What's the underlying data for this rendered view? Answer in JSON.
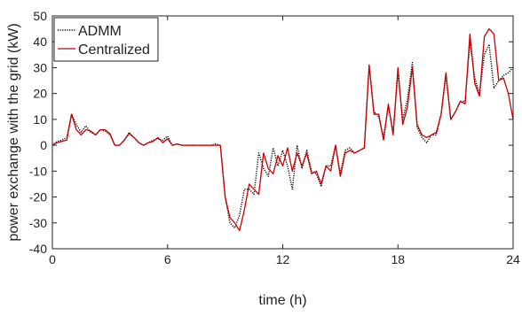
{
  "chart_data": {
    "type": "line",
    "xlabel": "time (h)",
    "ylabel": "power exchange with the grid (kW)",
    "xlim": [
      0,
      24
    ],
    "ylim": [
      -40,
      50
    ],
    "xticks": [
      0,
      6,
      12,
      18,
      24
    ],
    "yticks": [
      -40,
      -30,
      -20,
      -10,
      0,
      10,
      20,
      30,
      40,
      50
    ],
    "grid": false,
    "box": true,
    "legend_position": "top-left",
    "x": [
      0,
      0.25,
      0.5,
      0.75,
      1,
      1.25,
      1.5,
      1.75,
      2,
      2.25,
      2.5,
      2.75,
      3,
      3.25,
      3.5,
      3.75,
      4,
      4.25,
      4.5,
      4.75,
      5,
      5.25,
      5.5,
      5.75,
      6,
      6.25,
      6.5,
      6.75,
      7,
      7.25,
      7.5,
      7.75,
      8,
      8.25,
      8.5,
      8.75,
      9,
      9.25,
      9.5,
      9.75,
      10,
      10.25,
      10.5,
      10.75,
      11,
      11.25,
      11.5,
      11.75,
      12,
      12.25,
      12.5,
      12.75,
      13,
      13.25,
      13.5,
      13.75,
      14,
      14.25,
      14.5,
      14.75,
      15,
      15.25,
      15.5,
      15.75,
      16,
      16.25,
      16.5,
      16.75,
      17,
      17.25,
      17.5,
      17.75,
      18,
      18.25,
      18.5,
      18.75,
      19,
      19.25,
      19.5,
      19.75,
      20,
      20.25,
      20.5,
      20.75,
      21,
      21.25,
      21.5,
      21.75,
      22,
      22.25,
      22.5,
      22.75,
      23,
      23.25,
      23.5,
      23.75,
      24
    ],
    "series": [
      {
        "name": "ADMM",
        "color": "#000000",
        "style": "dotted",
        "values": [
          0,
          1.5,
          2,
          3,
          12,
          8,
          5,
          7.5,
          5,
          4,
          6,
          5.5,
          4,
          0,
          0,
          2,
          5,
          3,
          1,
          0,
          1,
          2,
          2.5,
          2,
          3.5,
          0,
          0.5,
          0,
          0,
          0,
          0,
          0,
          0,
          0,
          0.5,
          0,
          -20,
          -30,
          -32,
          -27,
          -17,
          -17,
          -19,
          -3,
          -9,
          -12,
          -1,
          -8,
          -2,
          -8,
          -17,
          0,
          -9,
          -2,
          -10,
          -11,
          -16,
          -8,
          -8,
          0,
          -11,
          -2,
          -1,
          -3,
          -2,
          -1,
          31,
          13,
          11,
          3,
          15,
          5,
          28,
          10,
          18,
          32,
          7,
          3,
          1,
          4,
          4,
          12,
          27,
          10,
          13,
          17,
          17,
          40,
          26,
          20,
          35,
          39,
          22,
          25,
          27,
          28,
          30
        ]
      },
      {
        "name": "Centralized",
        "color": "#cc0000",
        "style": "solid",
        "values": [
          0,
          1,
          1.5,
          2,
          12,
          6,
          4,
          6,
          5.5,
          4,
          6,
          6,
          4.5,
          0,
          0,
          2,
          4.5,
          3,
          1,
          0,
          1,
          1.5,
          3,
          1,
          2.5,
          0,
          0.5,
          0,
          0,
          0,
          0,
          0,
          0,
          0,
          0,
          0,
          -20,
          -28,
          -30,
          -33,
          -25,
          -15,
          -17,
          -19,
          -3,
          -9,
          -11,
          -4,
          -8,
          -1,
          -10,
          -3,
          -8,
          -3,
          -11,
          -10,
          -15,
          -8,
          -10,
          0,
          -12,
          -3,
          -2,
          -3,
          -2,
          -1,
          31,
          12,
          12,
          2,
          16,
          4,
          30,
          8,
          15,
          30,
          8,
          4,
          3,
          4,
          5,
          12,
          28,
          10,
          13,
          17,
          16,
          43,
          24,
          19,
          42,
          45,
          43,
          25,
          26,
          20,
          10
        ]
      }
    ]
  }
}
